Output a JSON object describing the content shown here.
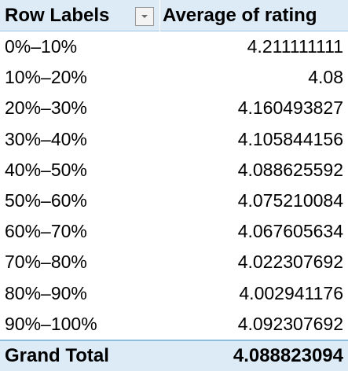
{
  "header": {
    "row_labels": "Row Labels",
    "value_column": "Average of rating",
    "filter_icon": "dropdown-arrow-icon"
  },
  "rows": [
    {
      "label": "0%–10%",
      "value": "4.211111111"
    },
    {
      "label": "10%–20%",
      "value": "4.08"
    },
    {
      "label": "20%–30%",
      "value": "4.160493827"
    },
    {
      "label": "30%–40%",
      "value": "4.105844156"
    },
    {
      "label": "40%–50%",
      "value": "4.088625592"
    },
    {
      "label": "50%–60%",
      "value": "4.075210084"
    },
    {
      "label": "60%–70%",
      "value": "4.067605634"
    },
    {
      "label": "70%–80%",
      "value": "4.022307692"
    },
    {
      "label": "80%–90%",
      "value": "4.002941176"
    },
    {
      "label": "90%–100%",
      "value": "4.092307692"
    }
  ],
  "grand_total": {
    "label": "Grand Total",
    "value": "4.088823094"
  },
  "colors": {
    "header_bg": "#dcebf6",
    "total_bg": "#dcebf6",
    "border": "#8fbde0"
  }
}
